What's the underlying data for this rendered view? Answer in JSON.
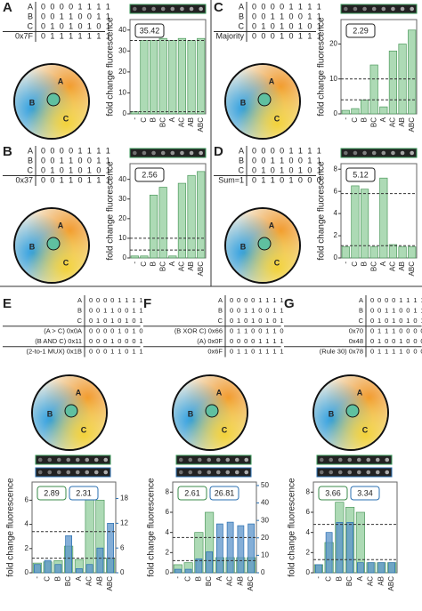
{
  "panels": [
    {
      "label": "A",
      "diagram": [
        "A",
        "B",
        "C"
      ],
      "rows": [
        {
          "name": "A",
          "bits": "0 0 0 0 1 1 1 1"
        },
        {
          "name": "B",
          "bits": "0 0 1 1 0 0 1 1"
        },
        {
          "name": "C",
          "bits": "0 1 0 1 0 1 0 1"
        },
        {
          "name": "0x7F",
          "bits": "0 1 1 1 1 1 1 1"
        }
      ]
    },
    {
      "label": "C",
      "diagram": [
        "A",
        "B",
        "C"
      ],
      "rows": [
        {
          "name": "A",
          "bits": "0 0 0 0 1 1 1 1"
        },
        {
          "name": "B",
          "bits": "0 0 1 1 0 0 1 1"
        },
        {
          "name": "C",
          "bits": "0 1 0 1 0 1 0 1"
        },
        {
          "name": "Majority",
          "bits": "0 0 0 1 0 1 1 1"
        }
      ]
    },
    {
      "label": "B",
      "diagram": [
        "A",
        "B",
        "C"
      ],
      "rows": [
        {
          "name": "A",
          "bits": "0 0 0 0 1 1 1 1"
        },
        {
          "name": "B",
          "bits": "0 0 1 1 0 0 1 1"
        },
        {
          "name": "C",
          "bits": "0 1 0 1 0 1 0 1"
        },
        {
          "name": "0x37",
          "bits": "0 0 1 1 0 1 1 1"
        }
      ]
    },
    {
      "label": "D",
      "diagram": [
        "A",
        "B",
        "C"
      ],
      "rows": [
        {
          "name": "A",
          "bits": "0 0 0 0 1 1 1 1"
        },
        {
          "name": "B",
          "bits": "0 0 1 1 0 0 1 1"
        },
        {
          "name": "C",
          "bits": "0 1 0 1 0 1 0 1"
        },
        {
          "name": "Sum=1",
          "bits": "0 1 1 0 1 0 0 0"
        }
      ]
    },
    {
      "label": "E",
      "diagram": [
        "A",
        "B",
        "C"
      ],
      "rows": [
        {
          "name": "A",
          "bits": "0 0 0 0 1 1 1 1"
        },
        {
          "name": "B",
          "bits": "0 0 1 1 0 0 1 1"
        },
        {
          "name": "C",
          "bits": "0 1 0 1 0 1 0 1"
        },
        {
          "name": "(A > C) 0x0A",
          "bits": "0 0 0 0 1 0 1 0"
        },
        {
          "name": "(B AND C) 0x11",
          "bits": "0 0 0 1 0 0 0 1"
        },
        {
          "name": "(2-to-1 MUX) 0x1B",
          "bits": "0 0 0 1 1 0 1 1"
        }
      ]
    },
    {
      "label": "F",
      "diagram": [
        "A",
        "B",
        "C"
      ],
      "rows": [
        {
          "name": "A",
          "bits": "0 0 0 0 1 1 1 1"
        },
        {
          "name": "B",
          "bits": "0 0 1 1 0 0 1 1"
        },
        {
          "name": "C",
          "bits": "0 1 0 1 0 1 0 1"
        },
        {
          "name": "(B XOR C) 0x66",
          "bits": "0 1 1 0 0 1 1 0"
        },
        {
          "name": "(A) 0x0F",
          "bits": "0 0 0 0 1 1 1 1"
        },
        {
          "name": "0x6F",
          "bits": "0 1 1 0 1 1 1 1"
        }
      ]
    },
    {
      "label": "G",
      "diagram": [
        "A",
        "B",
        "C"
      ],
      "rows": [
        {
          "name": "A",
          "bits": "0 0 0 0 1 1 1 1"
        },
        {
          "name": "B",
          "bits": "0 0 1 1 0 0 1 1"
        },
        {
          "name": "C",
          "bits": "0 1 0 1 0 1 0 1"
        },
        {
          "name": "0x70",
          "bits": "0 1 1 1 0 0 0 0"
        },
        {
          "name": "0x48",
          "bits": "0 1 0 0 1 0 0 0"
        },
        {
          "name": "(Rule 30) 0x78",
          "bits": "0 1 1 1 1 0 0 0"
        }
      ]
    }
  ],
  "chart_data": [
    {
      "type": "bar",
      "y_label": "fold change fluorescence",
      "categories": [
        "-",
        "C",
        "B",
        "BC",
        "A",
        "AC",
        "AB",
        "ABC"
      ],
      "series": [
        {
          "color": "#9fd3a8",
          "values": [
            1,
            35,
            35,
            36,
            35,
            36,
            35,
            36
          ]
        }
      ],
      "ylim": [
        0,
        45
      ],
      "yticks": [
        0,
        10,
        20,
        30,
        40
      ],
      "annotations": [
        "35.42"
      ],
      "reference_lines": [
        35,
        1
      ]
    },
    {
      "type": "bar",
      "y_label": "fold change fluorescence",
      "categories": [
        "-",
        "C",
        "B",
        "BC",
        "A",
        "AC",
        "AB",
        "ABC"
      ],
      "series": [
        {
          "color": "#9fd3a8",
          "values": [
            1,
            1.5,
            4,
            14,
            2,
            18,
            20,
            24
          ]
        }
      ],
      "ylim": [
        0,
        27
      ],
      "yticks": [
        0,
        10,
        20
      ],
      "annotations": [
        "2.29"
      ],
      "reference_lines": [
        10,
        4
      ]
    },
    {
      "type": "bar",
      "y_label": "fold change fluorescence",
      "categories": [
        "-",
        "C",
        "B",
        "BC",
        "A",
        "AC",
        "AB",
        "ABC"
      ],
      "series": [
        {
          "color": "#9fd3a8",
          "values": [
            1,
            1,
            32,
            36,
            1,
            38,
            42,
            44
          ]
        }
      ],
      "ylim": [
        0,
        48
      ],
      "yticks": [
        0,
        10,
        20,
        30,
        40
      ],
      "annotations": [
        "2.56"
      ],
      "reference_lines": [
        10,
        4
      ]
    },
    {
      "type": "bar",
      "y_label": "fold change fluorescence",
      "categories": [
        "-",
        "C",
        "B",
        "BC",
        "A",
        "AC",
        "AB",
        "ABC"
      ],
      "series": [
        {
          "color": "#9fd3a8",
          "values": [
            1,
            6.5,
            6.2,
            1,
            7.2,
            1.2,
            1,
            1
          ]
        }
      ],
      "ylim": [
        0,
        8.5
      ],
      "yticks": [
        0,
        2,
        4,
        6,
        8
      ],
      "annotations": [
        "5.12"
      ],
      "reference_lines": [
        5.8,
        1.1
      ]
    },
    {
      "type": "bar",
      "y_label": "fold change fluorescence",
      "categories": [
        "-",
        "C",
        "B",
        "BC",
        "A",
        "AC",
        "AB",
        "ABC"
      ],
      "series": [
        {
          "color": "#9fd3a8",
          "values": [
            0.8,
            0.9,
            1,
            2.2,
            1.1,
            6.8,
            6,
            1.2
          ]
        },
        {
          "color": "#5b93c9",
          "values": [
            2,
            3,
            2,
            9,
            1,
            2,
            6,
            12
          ],
          "axis": "y2"
        }
      ],
      "ylim": [
        0,
        7.5
      ],
      "yticks": [
        0,
        2,
        4,
        6
      ],
      "y2lim": [
        0,
        22
      ],
      "y2ticks": [
        0,
        6,
        12,
        18
      ],
      "annotations": [
        "2.89",
        "2.31"
      ],
      "reference_lines": [
        3.4,
        1.2
      ]
    },
    {
      "type": "bar",
      "y_label": "fold change fluorescence",
      "categories": [
        "-",
        "C",
        "B",
        "BC",
        "A",
        "AC",
        "AB",
        "ABC"
      ],
      "series": [
        {
          "color": "#9fd3a8",
          "values": [
            0.8,
            1,
            4,
            6,
            1.5,
            1.5,
            1.5,
            1.5
          ]
        },
        {
          "color": "#5b93c9",
          "values": [
            2,
            2,
            8,
            12,
            28,
            29,
            27,
            28
          ],
          "axis": "y2"
        }
      ],
      "ylim": [
        0,
        9
      ],
      "yticks": [
        0,
        2,
        4,
        6,
        8
      ],
      "y2lim": [
        0,
        52
      ],
      "y2ticks": [
        0,
        10,
        20,
        30,
        40,
        50
      ],
      "annotations": [
        "2.61",
        "26.81"
      ],
      "reference_lines": [
        3.5,
        1.2
      ]
    },
    {
      "type": "bar",
      "y_label": "fold change fluorescence",
      "categories": [
        "-",
        "C",
        "B",
        "BC",
        "A",
        "AC",
        "AB",
        "ABC"
      ],
      "series": [
        {
          "color": "#9fd3a8",
          "values": [
            0.8,
            3,
            7,
            6.5,
            6,
            1,
            1,
            1
          ]
        },
        {
          "color": "#5b93c9",
          "values": [
            0.8,
            4,
            5,
            5,
            1,
            1,
            1,
            1
          ]
        }
      ],
      "ylim": [
        0,
        9
      ],
      "yticks": [
        0,
        2,
        4,
        6,
        8
      ],
      "annotations": [
        "3.66",
        "3.34"
      ],
      "reference_lines": [
        4.8,
        1.3
      ]
    }
  ]
}
